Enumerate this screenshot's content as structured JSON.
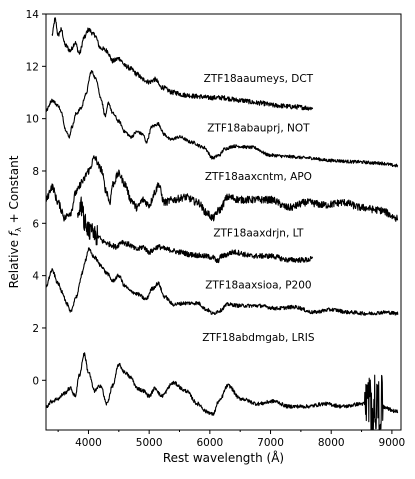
{
  "chart_data": {
    "type": "line",
    "title": "",
    "xlabel": "Rest wavelength (Å)",
    "ylabel_parts": {
      "pre": "Relative ",
      "f": "f",
      "sub": "λ",
      "post": " + Constant"
    },
    "xlim": [
      3300,
      9150
    ],
    "ylim": [
      -1.9,
      14.0
    ],
    "x_ticks": [
      4000,
      5000,
      6000,
      7000,
      8000,
      9000
    ],
    "y_ticks": [
      0,
      2,
      4,
      6,
      8,
      10,
      12,
      14
    ],
    "grid": false,
    "legend": "none",
    "line_color": "#000000",
    "series": [
      {
        "name": "ZTF18aaumeys, DCT",
        "label_at": [
          6800,
          11.4
        ],
        "noise": 0.09,
        "points": [
          [
            3400,
            13.2
          ],
          [
            3450,
            13.8
          ],
          [
            3500,
            13.2
          ],
          [
            3550,
            13.4
          ],
          [
            3620,
            12.8
          ],
          [
            3700,
            12.6
          ],
          [
            3780,
            12.9
          ],
          [
            3850,
            12.5
          ],
          [
            3930,
            13.1
          ],
          [
            4000,
            13.4
          ],
          [
            4100,
            13.2
          ],
          [
            4200,
            12.7
          ],
          [
            4300,
            12.6
          ],
          [
            4400,
            12.2
          ],
          [
            4500,
            12.3
          ],
          [
            4620,
            12.0
          ],
          [
            4700,
            11.9
          ],
          [
            4800,
            11.7
          ],
          [
            4900,
            11.5
          ],
          [
            5000,
            11.4
          ],
          [
            5100,
            11.5
          ],
          [
            5200,
            11.2
          ],
          [
            5400,
            11.0
          ],
          [
            5600,
            10.9
          ],
          [
            5800,
            10.85
          ],
          [
            6000,
            10.8
          ],
          [
            6200,
            10.8
          ],
          [
            6500,
            10.7
          ],
          [
            6800,
            10.6
          ],
          [
            7100,
            10.5
          ],
          [
            7400,
            10.45
          ],
          [
            7700,
            10.4
          ]
        ]
      },
      {
        "name": "ZTF18abauprj, NOT",
        "label_at": [
          6800,
          9.5
        ],
        "noise": 0.06,
        "points": [
          [
            3300,
            10.3
          ],
          [
            3400,
            10.7
          ],
          [
            3500,
            10.5
          ],
          [
            3560,
            10.2
          ],
          [
            3620,
            9.6
          ],
          [
            3680,
            9.3
          ],
          [
            3730,
            9.7
          ],
          [
            3800,
            10.2
          ],
          [
            3880,
            10.4
          ],
          [
            3950,
            10.9
          ],
          [
            4050,
            11.8
          ],
          [
            4130,
            11.5
          ],
          [
            4200,
            10.8
          ],
          [
            4280,
            10.1
          ],
          [
            4330,
            10.6
          ],
          [
            4400,
            10.2
          ],
          [
            4500,
            9.9
          ],
          [
            4600,
            9.5
          ],
          [
            4700,
            9.3
          ],
          [
            4800,
            9.5
          ],
          [
            4900,
            9.4
          ],
          [
            4950,
            9.1
          ],
          [
            5050,
            9.7
          ],
          [
            5150,
            9.8
          ],
          [
            5250,
            9.4
          ],
          [
            5350,
            9.2
          ],
          [
            5500,
            9.3
          ],
          [
            5700,
            9.1
          ],
          [
            5900,
            8.9
          ],
          [
            6050,
            8.5
          ],
          [
            6150,
            8.6
          ],
          [
            6250,
            8.85
          ],
          [
            6400,
            8.95
          ],
          [
            6700,
            8.9
          ],
          [
            7000,
            8.6
          ],
          [
            7300,
            8.55
          ],
          [
            7600,
            8.5
          ],
          [
            8000,
            8.4
          ],
          [
            8400,
            8.35
          ],
          [
            8800,
            8.3
          ],
          [
            9100,
            8.2
          ]
        ]
      },
      {
        "name": "ZTF18aaxcntm, APO",
        "label_at": [
          6800,
          7.65
        ],
        "noise": 0.14,
        "points": [
          [
            3300,
            6.9
          ],
          [
            3400,
            7.4
          ],
          [
            3500,
            6.8
          ],
          [
            3560,
            6.5
          ],
          [
            3600,
            6.2
          ],
          [
            3700,
            6.4
          ],
          [
            3800,
            7.2
          ],
          [
            3900,
            7.6
          ],
          [
            4000,
            8.0
          ],
          [
            4100,
            8.5
          ],
          [
            4200,
            8.1
          ],
          [
            4300,
            7.2
          ],
          [
            4350,
            6.8
          ],
          [
            4400,
            7.5
          ],
          [
            4500,
            7.9
          ],
          [
            4600,
            7.5
          ],
          [
            4700,
            6.9
          ],
          [
            4800,
            6.6
          ],
          [
            4900,
            6.9
          ],
          [
            5000,
            6.7
          ],
          [
            5100,
            7.2
          ],
          [
            5150,
            7.5
          ],
          [
            5250,
            6.8
          ],
          [
            5400,
            6.9
          ],
          [
            5600,
            7.0
          ],
          [
            5800,
            6.8
          ],
          [
            5950,
            6.4
          ],
          [
            6050,
            6.2
          ],
          [
            6150,
            6.5
          ],
          [
            6300,
            7.0
          ],
          [
            6500,
            6.9
          ],
          [
            6700,
            6.9
          ],
          [
            7000,
            6.9
          ],
          [
            7300,
            6.6
          ],
          [
            7600,
            6.8
          ],
          [
            7900,
            6.7
          ],
          [
            8200,
            6.8
          ],
          [
            8500,
            6.6
          ],
          [
            8800,
            6.5
          ],
          [
            9100,
            6.2
          ]
        ]
      },
      {
        "name": "ZTF18aaxdrjn, LT",
        "label_at": [
          6800,
          5.5
        ],
        "noise": 0.1,
        "points": [
          [
            3820,
            6.3
          ],
          [
            3880,
            6.6
          ],
          [
            3950,
            5.9
          ],
          [
            4050,
            5.6
          ],
          [
            4150,
            5.5
          ],
          [
            4250,
            5.3
          ],
          [
            4350,
            5.2
          ],
          [
            4450,
            5.1
          ],
          [
            4550,
            5.3
          ],
          [
            4650,
            5.2
          ],
          [
            4800,
            5.0
          ],
          [
            4900,
            5.1
          ],
          [
            5000,
            4.9
          ],
          [
            5150,
            5.1
          ],
          [
            5300,
            5.0
          ],
          [
            5500,
            4.9
          ],
          [
            5700,
            4.8
          ],
          [
            5900,
            4.75
          ],
          [
            6050,
            4.7
          ],
          [
            6120,
            4.55
          ],
          [
            6200,
            4.75
          ],
          [
            6400,
            4.9
          ],
          [
            6700,
            4.75
          ],
          [
            7000,
            4.75
          ],
          [
            7300,
            4.6
          ],
          [
            7600,
            4.6
          ],
          [
            7700,
            4.65
          ]
        ]
      },
      {
        "name": "ZTF18aaxsioa, P200",
        "label_at": [
          6800,
          3.5
        ],
        "noise": 0.07,
        "points": [
          [
            3300,
            3.6
          ],
          [
            3400,
            4.2
          ],
          [
            3500,
            3.7
          ],
          [
            3560,
            3.4
          ],
          [
            3650,
            2.9
          ],
          [
            3700,
            2.6
          ],
          [
            3800,
            3.2
          ],
          [
            3900,
            4.1
          ],
          [
            3950,
            4.6
          ],
          [
            4000,
            5.0
          ],
          [
            4100,
            4.7
          ],
          [
            4200,
            4.4
          ],
          [
            4300,
            4.1
          ],
          [
            4400,
            3.8
          ],
          [
            4500,
            4.0
          ],
          [
            4600,
            3.6
          ],
          [
            4700,
            3.4
          ],
          [
            4800,
            3.3
          ],
          [
            4950,
            3.1
          ],
          [
            5050,
            3.5
          ],
          [
            5150,
            3.7
          ],
          [
            5250,
            3.2
          ],
          [
            5400,
            2.9
          ],
          [
            5600,
            2.95
          ],
          [
            5800,
            2.95
          ],
          [
            5950,
            2.7
          ],
          [
            6050,
            2.55
          ],
          [
            6150,
            2.65
          ],
          [
            6300,
            2.9
          ],
          [
            6500,
            2.85
          ],
          [
            6800,
            2.85
          ],
          [
            7100,
            2.75
          ],
          [
            7400,
            2.8
          ],
          [
            7700,
            2.6
          ],
          [
            8000,
            2.7
          ],
          [
            8300,
            2.6
          ],
          [
            8600,
            2.55
          ],
          [
            8900,
            2.6
          ],
          [
            9100,
            2.55
          ]
        ]
      },
      {
        "name": "ZTF18abdmgab, LRIS",
        "label_at": [
          6800,
          1.5
        ],
        "noise": 0.07,
        "points": [
          [
            3300,
            -1.0
          ],
          [
            3400,
            -0.8
          ],
          [
            3500,
            -0.7
          ],
          [
            3600,
            -0.5
          ],
          [
            3700,
            -0.3
          ],
          [
            3780,
            -0.6
          ],
          [
            3850,
            0.2
          ],
          [
            3930,
            1.0
          ],
          [
            4000,
            0.3
          ],
          [
            4100,
            -0.4
          ],
          [
            4200,
            -0.2
          ],
          [
            4300,
            -0.9
          ],
          [
            4400,
            -0.2
          ],
          [
            4500,
            0.6
          ],
          [
            4600,
            0.3
          ],
          [
            4700,
            0.1
          ],
          [
            4800,
            -0.3
          ],
          [
            4900,
            -0.4
          ],
          [
            5000,
            -0.6
          ],
          [
            5100,
            -0.3
          ],
          [
            5200,
            -0.6
          ],
          [
            5400,
            -0.1
          ],
          [
            5600,
            -0.4
          ],
          [
            5800,
            -0.9
          ],
          [
            5950,
            -1.2
          ],
          [
            6050,
            -1.3
          ],
          [
            6150,
            -0.8
          ],
          [
            6300,
            -0.2
          ],
          [
            6500,
            -0.7
          ],
          [
            6800,
            -0.9
          ],
          [
            7050,
            -0.8
          ],
          [
            7300,
            -1.0
          ],
          [
            7600,
            -1.0
          ],
          [
            7900,
            -0.9
          ],
          [
            8200,
            -1.0
          ],
          [
            8500,
            -0.9
          ],
          [
            8800,
            -1.0
          ],
          [
            9100,
            -1.2
          ]
        ]
      }
    ]
  }
}
